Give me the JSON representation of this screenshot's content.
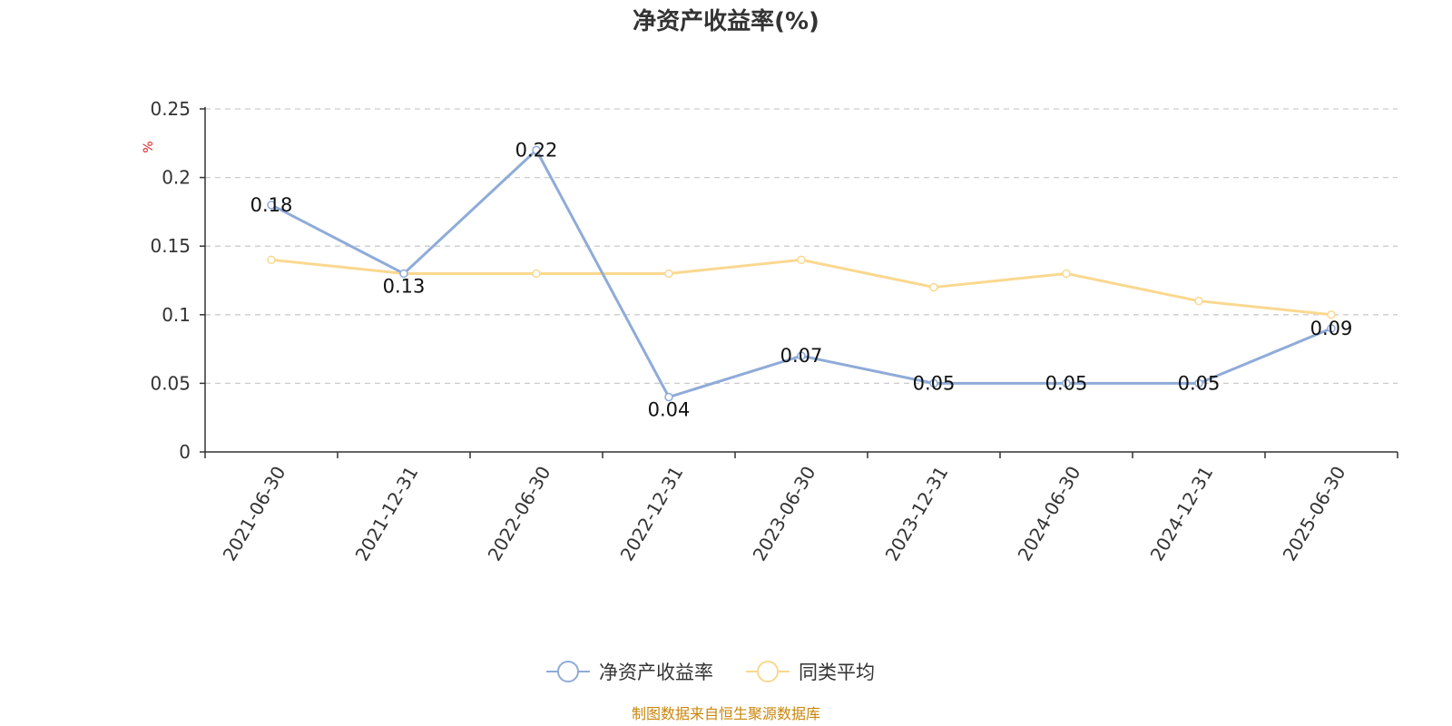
{
  "chart_data": {
    "type": "line",
    "title": "净资产收益率(%)",
    "ylabel": "%",
    "xlabel": "",
    "categories": [
      "2021-06-30",
      "2021-12-31",
      "2022-06-30",
      "2022-12-31",
      "2023-06-30",
      "2023-12-31",
      "2024-06-30",
      "2024-12-31",
      "2025-06-30"
    ],
    "ylim": [
      0,
      0.25
    ],
    "yticks": [
      "0",
      "0.05",
      "0.1",
      "0.15",
      "0.2",
      "0.25"
    ],
    "grid": true,
    "legend_position": "bottom",
    "series": [
      {
        "name": "净资产收益率",
        "values": [
          0.18,
          0.13,
          0.22,
          0.04,
          0.07,
          0.05,
          0.05,
          0.05,
          0.09
        ],
        "labels": [
          "0.18",
          "0.13",
          "0.22",
          "0.04",
          "0.07",
          "0.05",
          "0.05",
          "0.05",
          "0.09"
        ],
        "color": "#8fabd8"
      },
      {
        "name": "同类平均",
        "values": [
          0.14,
          0.13,
          0.13,
          0.13,
          0.14,
          0.12,
          0.13,
          0.11,
          0.1
        ],
        "color": "#fad88f"
      }
    ]
  },
  "source": "制图数据来自恒生聚源数据库"
}
